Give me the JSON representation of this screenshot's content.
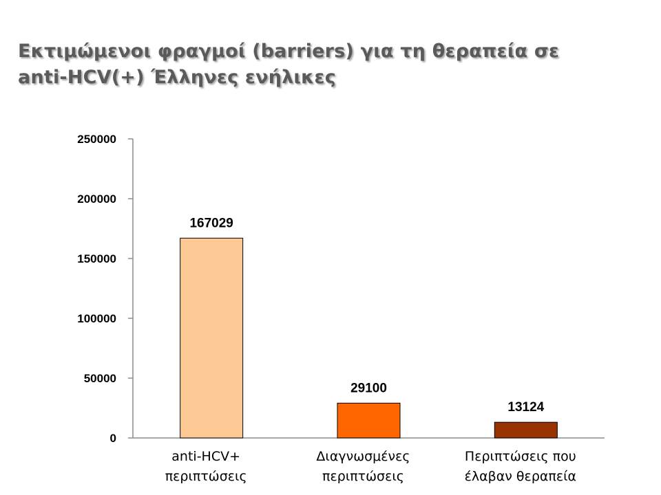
{
  "slide": {
    "title_line1": "Εκτιμώμενοι φραγμοί (barriers) για τη θεραπεία σε",
    "title_line2": "anti-HCV(+) Έλληνες ενήλικες"
  },
  "chart_data": {
    "type": "bar",
    "categories": [
      [
        "anti-HCV+",
        "περιπτώσεις"
      ],
      [
        "Διαγνωσμένες",
        "περιπτώσεις"
      ],
      [
        "Περιπτώσεις που",
        "έλαβαν θεραπεία"
      ]
    ],
    "values": [
      167029,
      29100,
      13124
    ],
    "data_labels": [
      "167029",
      "29100",
      "13124"
    ],
    "bar_colors": [
      "#fcc995",
      "#ff6600",
      "#993300"
    ],
    "ylim": [
      0,
      250000
    ],
    "yticks": [
      0,
      50000,
      100000,
      150000,
      200000,
      250000
    ],
    "ytick_labels": [
      "0",
      "50000",
      "100000",
      "150000",
      "200000",
      "250000"
    ],
    "grid": false,
    "legend": "none"
  }
}
